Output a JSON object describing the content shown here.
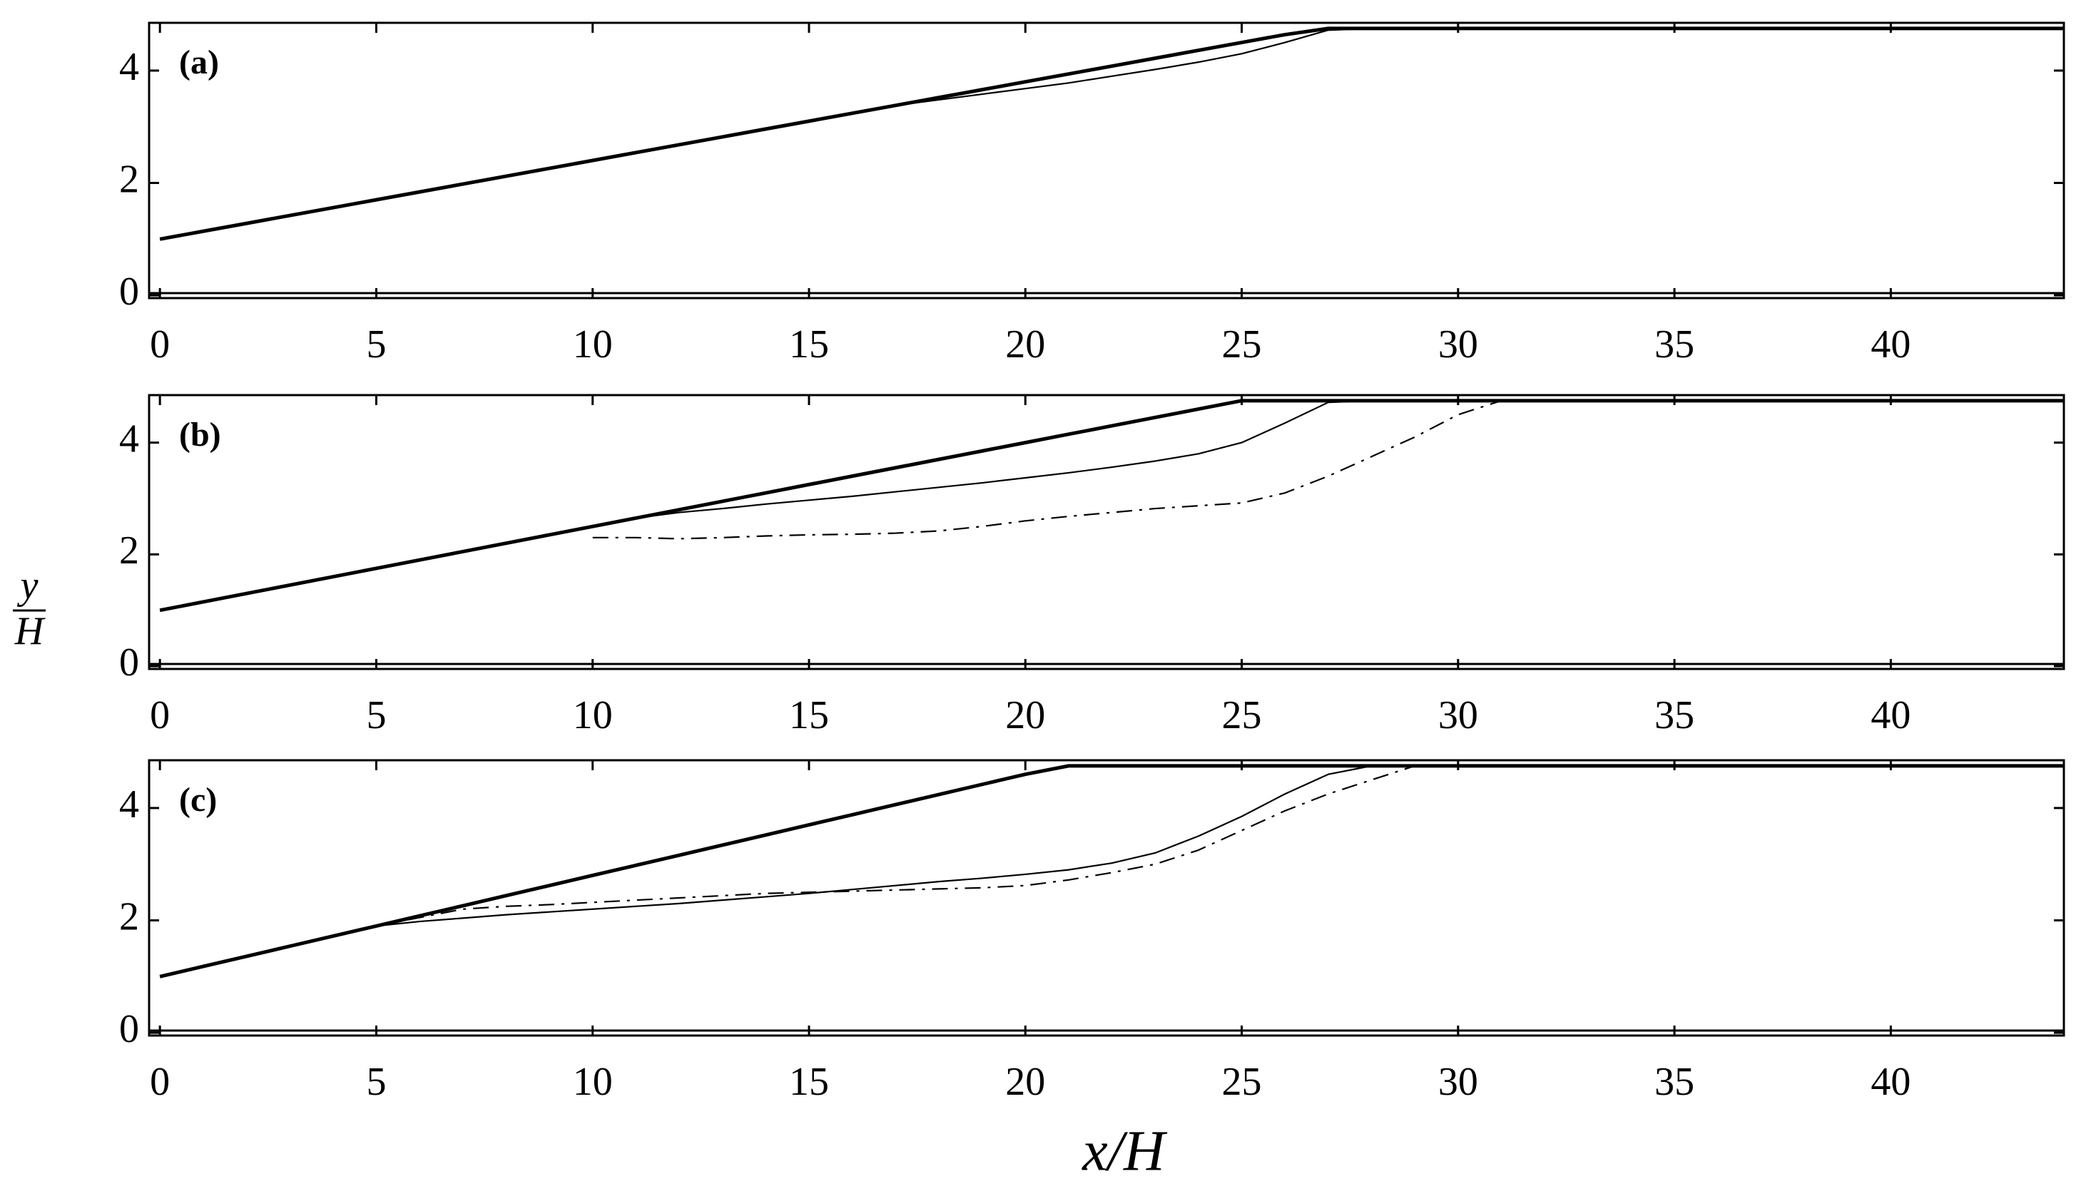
{
  "axis_labels": {
    "x": "x/H",
    "y_numerator": "y",
    "y_denominator": "H"
  },
  "chart_data": [
    {
      "type": "line",
      "panel_label": "(a)",
      "x": [
        0,
        1,
        2,
        3,
        4,
        5,
        6,
        7,
        8,
        9,
        10,
        11,
        12,
        13,
        14,
        15,
        16,
        17,
        18,
        19,
        20,
        21,
        22,
        23,
        24,
        25,
        26,
        27,
        28,
        29,
        30,
        31,
        44
      ],
      "xlim": [
        -0.25,
        44
      ],
      "ylim": [
        -0.05,
        4.85
      ],
      "xticks": [
        0,
        5,
        10,
        15,
        20,
        25,
        30,
        35,
        40
      ],
      "yticks": [
        0,
        2,
        4
      ],
      "series": [
        {
          "color": "#000000",
          "style": "thick",
          "values": [
            1,
            1.14,
            1.28,
            1.42,
            1.56,
            1.7,
            1.84,
            1.98,
            2.12,
            2.26,
            2.4,
            2.54,
            2.68,
            2.82,
            2.96,
            3.1,
            3.24,
            3.38,
            3.52,
            3.66,
            3.8,
            3.94,
            4.08,
            4.22,
            4.36,
            4.5,
            4.64,
            4.75,
            4.75,
            4.75,
            4.75,
            4.75,
            4.75
          ]
        },
        {
          "color": "#000000",
          "style": "thin",
          "values": [
            1,
            1.14,
            1.28,
            1.42,
            1.56,
            1.7,
            1.84,
            1.98,
            2.12,
            2.26,
            2.4,
            2.54,
            2.68,
            2.82,
            2.96,
            3.1,
            3.24,
            3.38,
            3.48,
            3.58,
            3.68,
            3.78,
            3.9,
            4.02,
            4.15,
            4.3,
            4.5,
            4.72,
            4.75,
            4.75,
            4.75,
            4.75,
            4.75
          ]
        }
      ]
    },
    {
      "type": "line",
      "panel_label": "(b)",
      "x": [
        0,
        1,
        2,
        3,
        4,
        5,
        6,
        7,
        8,
        9,
        10,
        11,
        12,
        13,
        14,
        15,
        16,
        17,
        18,
        19,
        20,
        21,
        22,
        23,
        24,
        25,
        26,
        27,
        28,
        29,
        30,
        31,
        44
      ],
      "xlim": [
        -0.25,
        44
      ],
      "ylim": [
        -0.05,
        4.85
      ],
      "xticks": [
        0,
        5,
        10,
        15,
        20,
        25,
        30,
        35,
        40
      ],
      "yticks": [
        0,
        2,
        4
      ],
      "series": [
        {
          "color": "#000000",
          "style": "thick",
          "values": [
            1,
            1.15,
            1.3,
            1.45,
            1.6,
            1.75,
            1.9,
            2.05,
            2.2,
            2.35,
            2.5,
            2.65,
            2.8,
            2.95,
            3.1,
            3.25,
            3.4,
            3.55,
            3.7,
            3.85,
            4,
            4.15,
            4.3,
            4.45,
            4.6,
            4.75,
            4.75,
            4.75,
            4.75,
            4.75,
            4.75,
            4.75,
            4.75
          ]
        },
        {
          "color": "#000000",
          "style": "thin",
          "values": [
            1,
            1.15,
            1.3,
            1.45,
            1.6,
            1.75,
            1.9,
            2.05,
            2.2,
            2.35,
            2.5,
            2.65,
            2.75,
            2.82,
            2.9,
            2.97,
            3.04,
            3.12,
            3.2,
            3.28,
            3.37,
            3.46,
            3.56,
            3.67,
            3.8,
            4,
            4.35,
            4.72,
            4.75,
            4.75,
            4.75,
            4.75,
            4.75
          ]
        },
        {
          "color": "#000000",
          "style": "dash-dot",
          "values": [
            null,
            null,
            null,
            null,
            null,
            null,
            null,
            null,
            null,
            null,
            2.3,
            2.3,
            2.28,
            2.3,
            2.33,
            2.35,
            2.36,
            2.38,
            2.42,
            2.5,
            2.6,
            2.68,
            2.75,
            2.82,
            2.87,
            2.92,
            3.1,
            3.4,
            3.75,
            4.1,
            4.5,
            4.75,
            4.75
          ]
        }
      ]
    },
    {
      "type": "line",
      "panel_label": "(c)",
      "x": [
        0,
        1,
        2,
        3,
        4,
        5,
        6,
        7,
        8,
        9,
        10,
        11,
        12,
        13,
        14,
        15,
        16,
        17,
        18,
        19,
        20,
        21,
        22,
        23,
        24,
        25,
        26,
        27,
        28,
        29,
        30,
        31,
        44
      ],
      "xlim": [
        -0.25,
        44
      ],
      "ylim": [
        -0.05,
        4.85
      ],
      "xticks": [
        0,
        5,
        10,
        15,
        20,
        25,
        30,
        35,
        40
      ],
      "yticks": [
        0,
        2,
        4
      ],
      "series": [
        {
          "color": "#000000",
          "style": "thick",
          "values": [
            1,
            1.18,
            1.36,
            1.54,
            1.72,
            1.9,
            2.08,
            2.26,
            2.44,
            2.62,
            2.8,
            2.98,
            3.16,
            3.34,
            3.52,
            3.7,
            3.88,
            4.06,
            4.24,
            4.42,
            4.6,
            4.75,
            4.75,
            4.75,
            4.75,
            4.75,
            4.75,
            4.75,
            4.75,
            4.75,
            4.75,
            4.75,
            4.75
          ]
        },
        {
          "color": "#000000",
          "style": "thin",
          "values": [
            1,
            1.18,
            1.36,
            1.54,
            1.72,
            1.9,
            1.98,
            2.04,
            2.1,
            2.15,
            2.2,
            2.25,
            2.3,
            2.36,
            2.42,
            2.48,
            2.55,
            2.62,
            2.69,
            2.75,
            2.82,
            2.9,
            3.02,
            3.2,
            3.5,
            3.85,
            4.25,
            4.6,
            4.75,
            4.75,
            4.75,
            4.75,
            4.75
          ]
        },
        {
          "color": "#000000",
          "style": "dash-dot",
          "values": [
            null,
            null,
            null,
            null,
            null,
            1.9,
            2.05,
            2.2,
            2.25,
            2.28,
            2.32,
            2.36,
            2.4,
            2.44,
            2.48,
            2.5,
            2.52,
            2.54,
            2.56,
            2.58,
            2.62,
            2.72,
            2.85,
            3,
            3.25,
            3.6,
            3.95,
            4.25,
            4.5,
            4.75,
            4.75,
            4.75,
            4.75
          ]
        }
      ]
    }
  ]
}
